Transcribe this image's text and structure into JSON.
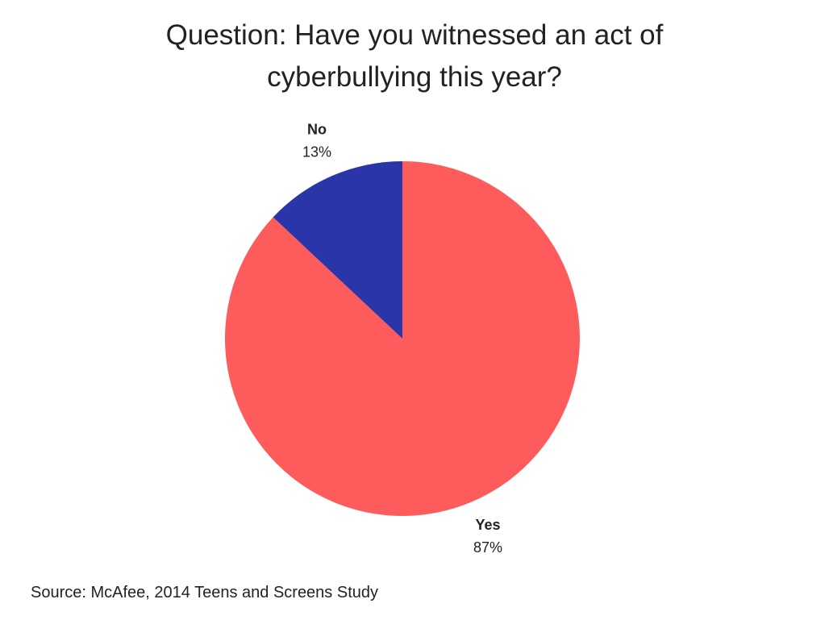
{
  "chart_data": {
    "type": "pie",
    "title": "Question: Have you witnessed an act of cyberbullying this year?",
    "categories": [
      "Yes",
      "No"
    ],
    "values": [
      87,
      13
    ],
    "value_labels": [
      "87%",
      "13%"
    ],
    "colors": [
      "#fe5c5c",
      "#2a36a8"
    ],
    "source": "Source: McAfee, 2014 Teens and Screens Study"
  }
}
